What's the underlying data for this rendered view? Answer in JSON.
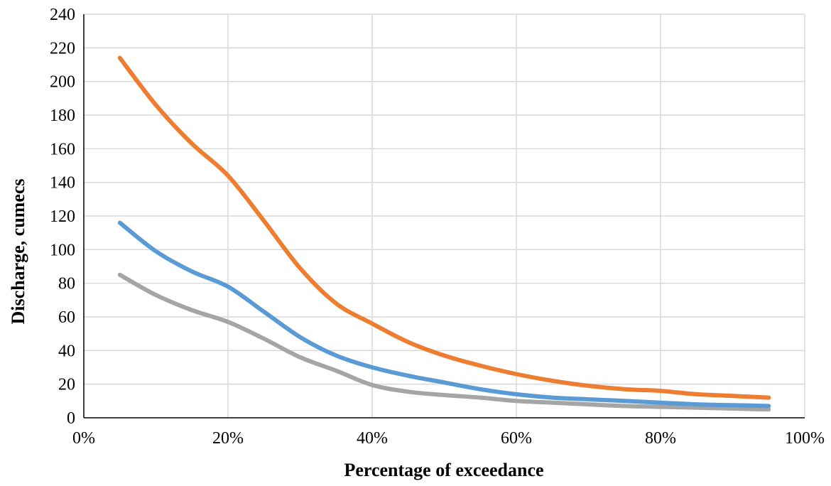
{
  "chart_data": {
    "type": "line",
    "title": "",
    "xlabel": "Percentage of exceedance",
    "ylabel": "Discharge, cumecs",
    "xlim": [
      0,
      100
    ],
    "ylim": [
      0,
      240
    ],
    "x_tick_labels": [
      "0%",
      "20%",
      "40%",
      "60%",
      "80%",
      "100%"
    ],
    "y_tick_labels": [
      "0",
      "20",
      "40",
      "60",
      "80",
      "100",
      "120",
      "140",
      "160",
      "180",
      "200",
      "220",
      "240"
    ],
    "grid": true,
    "legend": "none",
    "x": [
      5,
      10,
      15,
      20,
      25,
      30,
      35,
      40,
      45,
      50,
      55,
      60,
      65,
      70,
      75,
      80,
      85,
      90,
      95
    ],
    "series": [
      {
        "color": "#ED7D31",
        "values": [
          214,
          186,
          163,
          144,
          117,
          89,
          68,
          56,
          45,
          37,
          31,
          26,
          22,
          19,
          17,
          16,
          14,
          13,
          12
        ]
      },
      {
        "color": "#5B9BD5",
        "values": [
          116,
          99,
          87,
          78,
          63,
          48,
          37,
          30,
          25,
          21,
          17,
          14,
          12,
          11,
          10,
          9,
          8,
          7.5,
          7
        ]
      },
      {
        "color": "#A5A5A5",
        "values": [
          85,
          73,
          64,
          57,
          47,
          36,
          28,
          19.5,
          15.5,
          13.5,
          12,
          10,
          9,
          8,
          7,
          6.5,
          6,
          5.5,
          5
        ]
      }
    ]
  }
}
